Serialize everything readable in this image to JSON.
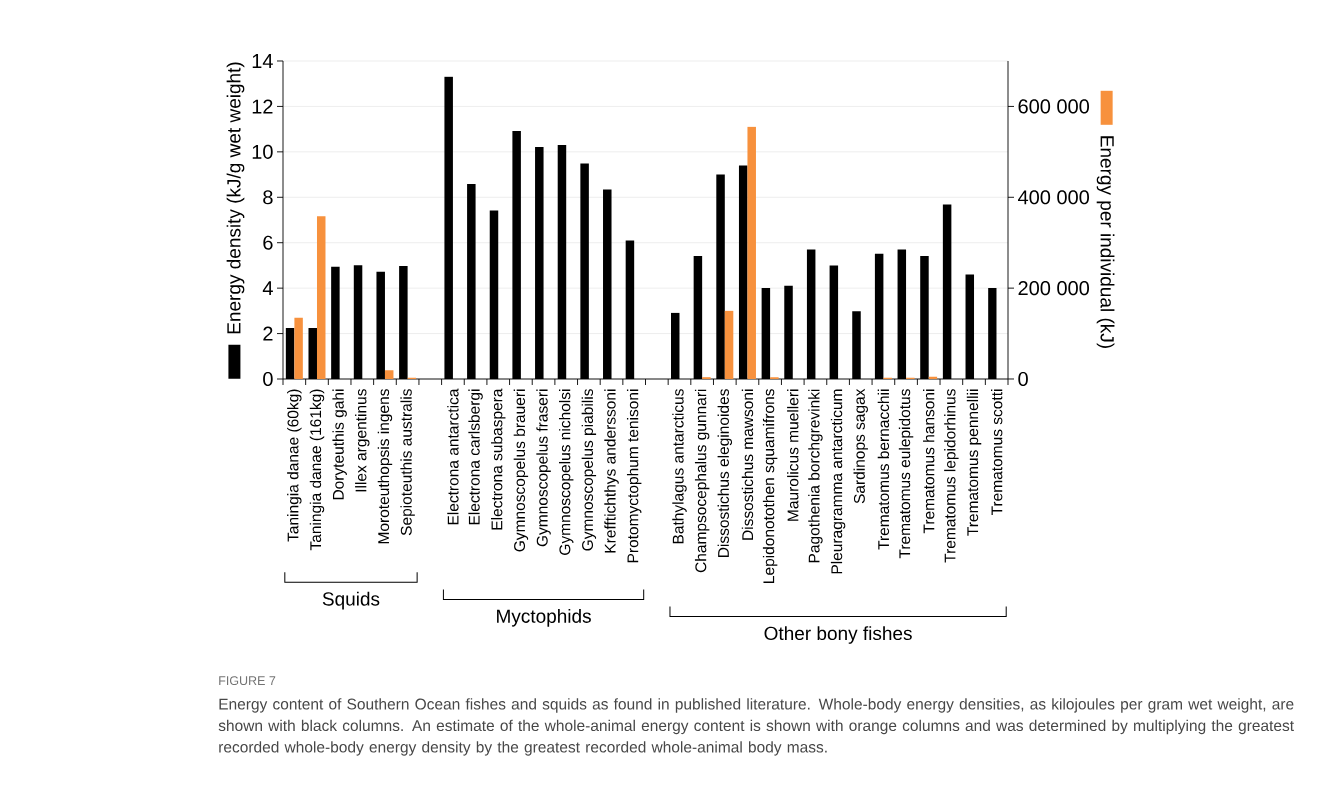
{
  "chart_data": {
    "type": "bar",
    "categories": [
      "Taningia danae (60kg)",
      "Taningia danae (161kg)",
      "Doryteuthis gahi",
      "Illex argentinus",
      "Moroteuthopsis ingens",
      "Sepioteuthis australis",
      null,
      "Electrona antarctica",
      "Electrona carlsbergi",
      "Electrona subaspera",
      "Gymnoscopelus braueri",
      "Gymnoscopelus fraseri",
      "Gymnoscopelus nicholsi",
      "Gymnoscopelus piabilis",
      "Krefftichthys anderssoni",
      "Protomyctophum tenisoni",
      null,
      "Bathylagus antarcticus",
      "Champsocephalus gunnari",
      "Dissostichus eleginoides",
      "Dissostichus mawsoni",
      "Lepidonotothen squamifrons",
      "Maurolicus muelleri",
      "Pagothenia borchgrevinki",
      "Pleuragramma antarcticum",
      "Sardinops sagax",
      "Trematomus bernacchii",
      "Trematomus eulepidotus",
      "Trematomus hansoni",
      "Trematomus lepidorhinus",
      "Trematomus pennellii",
      "Trematomus scotti"
    ],
    "series": [
      {
        "color": "#000000",
        "values": [
          2.25,
          2.25,
          4.94,
          5.01,
          4.72,
          4.98,
          null,
          13.31,
          8.59,
          7.42,
          10.92,
          10.21,
          10.3,
          9.49,
          8.34,
          6.1,
          null,
          2.91,
          5.41,
          9.0,
          9.4,
          4.01,
          4.11,
          5.7,
          5.0,
          2.98,
          5.51,
          5.7,
          5.41,
          7.68,
          4.6,
          4.01
        ]
      },
      {
        "color": "#f7913d",
        "axis": "y2",
        "values": [
          135000,
          358000,
          null,
          null,
          19000,
          3000,
          null,
          null,
          null,
          null,
          null,
          null,
          null,
          null,
          null,
          null,
          null,
          null,
          4000,
          150000,
          555000,
          4000,
          null,
          null,
          null,
          null,
          3000,
          3000,
          5000,
          null,
          null,
          null
        ]
      }
    ],
    "ylabel": "Energy density (kJ/g wet weight)",
    "y2label": "Energy per individual (kJ)",
    "ylim": [
      0,
      14
    ],
    "yticks": [
      0,
      2,
      4,
      6,
      8,
      10,
      12,
      14
    ],
    "y2lim": [
      0,
      700000
    ],
    "y2ticks": [
      0,
      {
        "value": 200000,
        "label": "200 000"
      },
      {
        "value": 400000,
        "label": "400 000"
      },
      {
        "value": 600000,
        "label": "600 000"
      }
    ],
    "grid": "y",
    "annotations": [
      "Squids",
      "Myctophids",
      "Other bony fishes",
      "FIGURE 7",
      "Energy content of Southern Ocean fishes and squids as found in published literature. Whole-body energy densities, as kilojoules per gram wet weight, are shown with black columns. An estimate of the whole-animal energy content is shown with orange columns and was determined by multiplying the greatest recorded whole-body energy density by the greatest recorded whole-animal body mass."
    ]
  }
}
